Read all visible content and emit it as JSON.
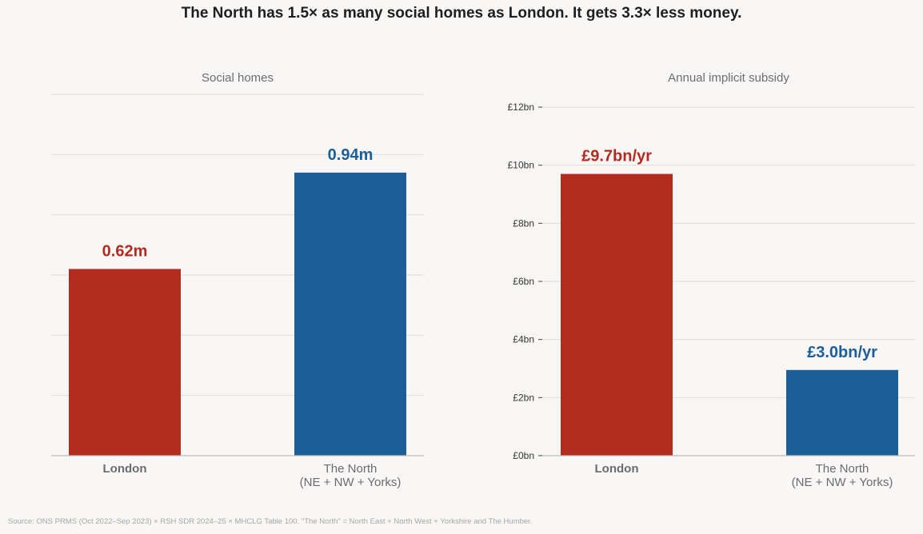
{
  "title": "The North has 1.5× as many social homes as London. It gets 3.3× less money.",
  "source": "Source: ONS PRMS (Oct 2022–Sep 2023) × RSH SDR 2024–25 × MHCLG Table 100. \"The North\" = North East + North West + Yorkshire and The Humber.",
  "colors": {
    "london": "#b32a1f",
    "north": "#1b5e99",
    "muted": "#6b6b72"
  },
  "chart_data": [
    {
      "type": "bar",
      "title": "Social homes",
      "categories": [
        [
          "London"
        ],
        [
          "The North",
          "(NE + NW + Yorks)"
        ]
      ],
      "values": [
        0.62,
        0.94
      ],
      "value_labels": [
        "0.62m",
        "0.94m"
      ],
      "ylim": [
        0,
        1.2
      ],
      "grid": true,
      "y_axis_labels_shown": false
    },
    {
      "type": "bar",
      "title": "Annual implicit subsidy",
      "categories": [
        [
          "London"
        ],
        [
          "The North",
          "(NE + NW + Yorks)"
        ]
      ],
      "values": [
        9.7,
        2.95
      ],
      "value_labels": [
        "£9.7bn/yr",
        "£3.0bn/yr"
      ],
      "ylim": [
        0,
        12
      ],
      "yticks": [
        0,
        2,
        4,
        6,
        8,
        10,
        12
      ],
      "ytick_labels": [
        "£0bn",
        "£2bn",
        "£4bn",
        "£6bn",
        "£8bn",
        "£10bn",
        "£12bn"
      ],
      "grid": true,
      "y_axis_labels_shown": true
    }
  ]
}
